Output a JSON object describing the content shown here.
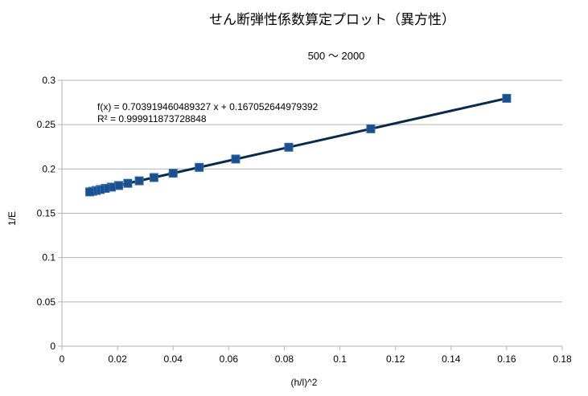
{
  "chart_data": {
    "type": "scatter",
    "title": "せん断弾性係数算定プロット（異方性）",
    "subtitle": "500 〜 2000",
    "xlabel": "(h/l)^2",
    "ylabel": "1/E",
    "xlim": [
      0,
      0.18
    ],
    "ylim": [
      0,
      0.3
    ],
    "xticks": [
      0,
      0.02,
      0.04,
      0.06,
      0.08,
      0.1,
      0.12,
      0.14,
      0.16,
      0.18
    ],
    "xtick_labels": [
      "0",
      "0.02",
      "0.04",
      "0.06",
      "0.08",
      "0.1",
      "0.12",
      "0.14",
      "0.16",
      "0.18"
    ],
    "yticks": [
      0,
      0.05,
      0.1,
      0.15,
      0.2,
      0.25,
      0.3
    ],
    "ytick_labels": [
      "0",
      "0.05",
      "0.1",
      "0.15",
      "0.2",
      "0.25",
      "0.3"
    ],
    "grid": "horizontal",
    "legend": "none",
    "series": [
      {
        "x": [
          0.16,
          0.1111,
          0.0816,
          0.0625,
          0.0494,
          0.04,
          0.0331,
          0.0278,
          0.0237,
          0.0204,
          0.0178,
          0.0156,
          0.0138,
          0.0123,
          0.0111,
          0.01
        ],
        "y": [
          0.2797,
          0.2453,
          0.2245,
          0.2112,
          0.2018,
          0.1952,
          0.1903,
          0.1866,
          0.1838,
          0.1813,
          0.1795,
          0.1781,
          0.1768,
          0.1757,
          0.1749,
          0.1741
        ],
        "marker": "square",
        "color": "#1f4e8c"
      }
    ],
    "trendline": {
      "type": "linear",
      "slope": 0.703919460489327,
      "intercept": 0.167052644979392,
      "x_range": [
        0.01,
        0.16
      ],
      "color": "#0b2a4a",
      "equation_label": "f(x) = 0.703919460489327 x + 0.167052644979392",
      "r2_label": "R² = 0.999911873728848"
    }
  }
}
